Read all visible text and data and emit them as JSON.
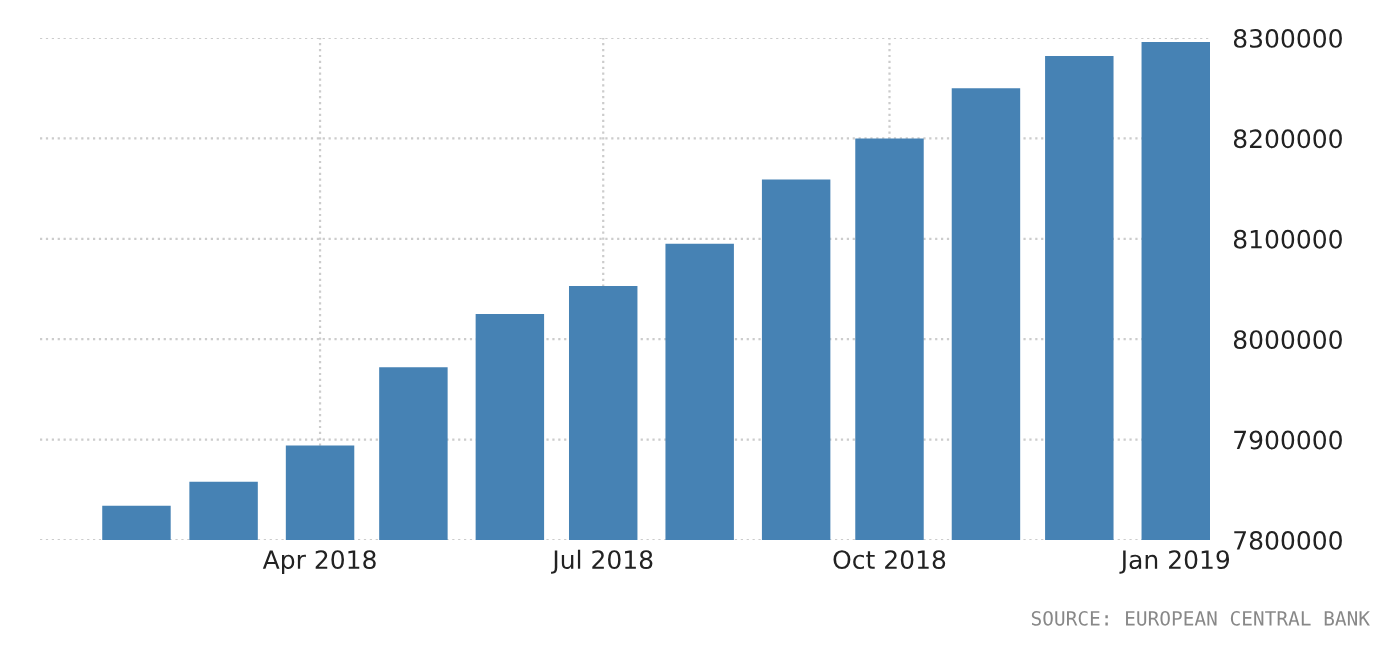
{
  "chart_data": {
    "type": "bar",
    "x": [
      "2018-02-01",
      "2018-03-01",
      "2018-04-01",
      "2018-05-01",
      "2018-06-01",
      "2018-07-01",
      "2018-08-01",
      "2018-09-01",
      "2018-10-01",
      "2018-11-01",
      "2018-12-01",
      "2019-01-01"
    ],
    "values": [
      7834000,
      7858000,
      7894000,
      7972000,
      8025000,
      8053000,
      8095000,
      8159000,
      8200000,
      8250000,
      8282000,
      8296000
    ],
    "color": "#4682b4",
    "xlim": [
      "2018-01-01",
      "2019-01-12"
    ],
    "xticks": [
      {
        "value": "2018-04-01",
        "label": "Apr 2018"
      },
      {
        "value": "2018-07-01",
        "label": "Jul 2018"
      },
      {
        "value": "2018-10-01",
        "label": "Oct 2018"
      },
      {
        "value": "2019-01-01",
        "label": "Jan 2019"
      }
    ],
    "ylim": [
      7800000,
      8300000
    ],
    "yticks": [
      7800000,
      7900000,
      8000000,
      8100000,
      8200000,
      8300000
    ],
    "grid": true,
    "annotations": [
      "SOURCE: EUROPEAN CENTRAL BANK"
    ]
  }
}
